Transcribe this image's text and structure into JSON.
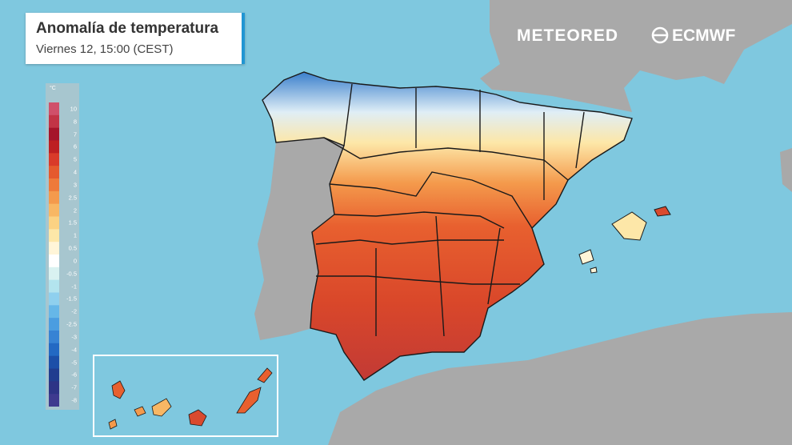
{
  "title": "Anomalía de temperatura",
  "subtitle": "Viernes 12, 15:00 (CEST)",
  "brands": {
    "meteored": "METEORED",
    "ecmwf": "ECMWF"
  },
  "legend": {
    "unit": "°C",
    "labels": [
      "10",
      "8",
      "7",
      "6",
      "5",
      "4",
      "3",
      "2.5",
      "2",
      "1.5",
      "1",
      "0.5",
      "0",
      "-0.5",
      "-1",
      "-1.5",
      "-2",
      "-2.5",
      "-3",
      "-4",
      "-5",
      "-6",
      "-7",
      "-8"
    ],
    "colors": [
      "#d0506a",
      "#c23446",
      "#a5142a",
      "#bd1f22",
      "#d93a2a",
      "#e55a2e",
      "#ee7a3a",
      "#f49a4c",
      "#f8b764",
      "#fbd283",
      "#fde7a8",
      "#fff5d8",
      "#ffffff",
      "#d9f2f1",
      "#b3e4ee",
      "#8fd0ee",
      "#66b7e8",
      "#4b9de0",
      "#3783d4",
      "#2369c3",
      "#1c4fa8",
      "#203d8f",
      "#2d3486",
      "#3e3a8f"
    ]
  },
  "colors": {
    "sea": "#7fc8df",
    "land": "#a9a9a9",
    "accent": "#2196d3",
    "hot": "#d94a2e",
    "cold": "#3a7fcc"
  }
}
